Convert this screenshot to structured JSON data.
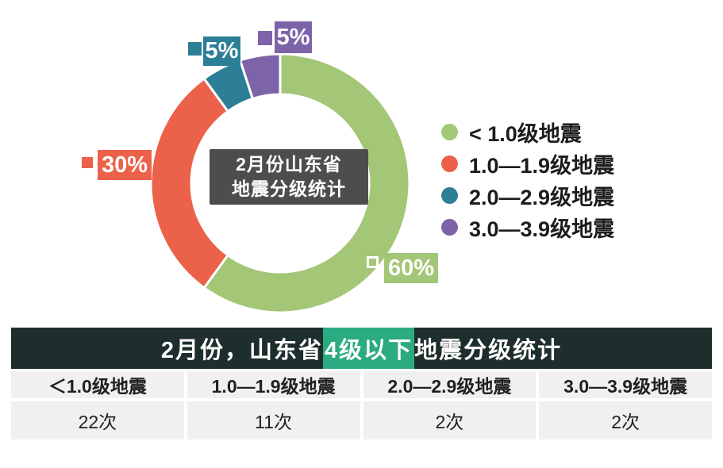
{
  "chart_data": {
    "type": "pie",
    "donut": true,
    "title": "2月份山东省地震分级统计",
    "center_title_lines": [
      "2月份山东省",
      "地震分级统计"
    ],
    "center_box_bg": "#4d4d4d",
    "legend_position": "right",
    "slices": [
      {
        "label": "< 1.0级地震",
        "percent": 60,
        "percent_label": "60%",
        "count_label": "22次",
        "color": "#a4c677"
      },
      {
        "label": "1.0—1.9级地震",
        "percent": 30,
        "percent_label": "30%",
        "count_label": "11次",
        "color": "#eb6149"
      },
      {
        "label": "2.0—2.9级地震",
        "percent": 5,
        "percent_label": "5%",
        "count_label": "2次",
        "color": "#2d7e97"
      },
      {
        "label": "3.0—3.9级地震",
        "percent": 5,
        "percent_label": "5%",
        "count_label": "2次",
        "color": "#7d63a8"
      }
    ]
  },
  "table": {
    "header": {
      "prefix": "2月份，山东省",
      "highlight": "4级以下",
      "suffix": "地震分级统计",
      "highlight_color": "#2bab81",
      "bar_bg": "#1e2e2d"
    },
    "cell_bg": "#f0f0f1",
    "columns": [
      "＜1.0级地震",
      "1.0—1.9级地震",
      "2.0—2.9级地震",
      "3.0—3.9级地震"
    ],
    "values": [
      "22次",
      "11次",
      "2次",
      "2次"
    ]
  }
}
